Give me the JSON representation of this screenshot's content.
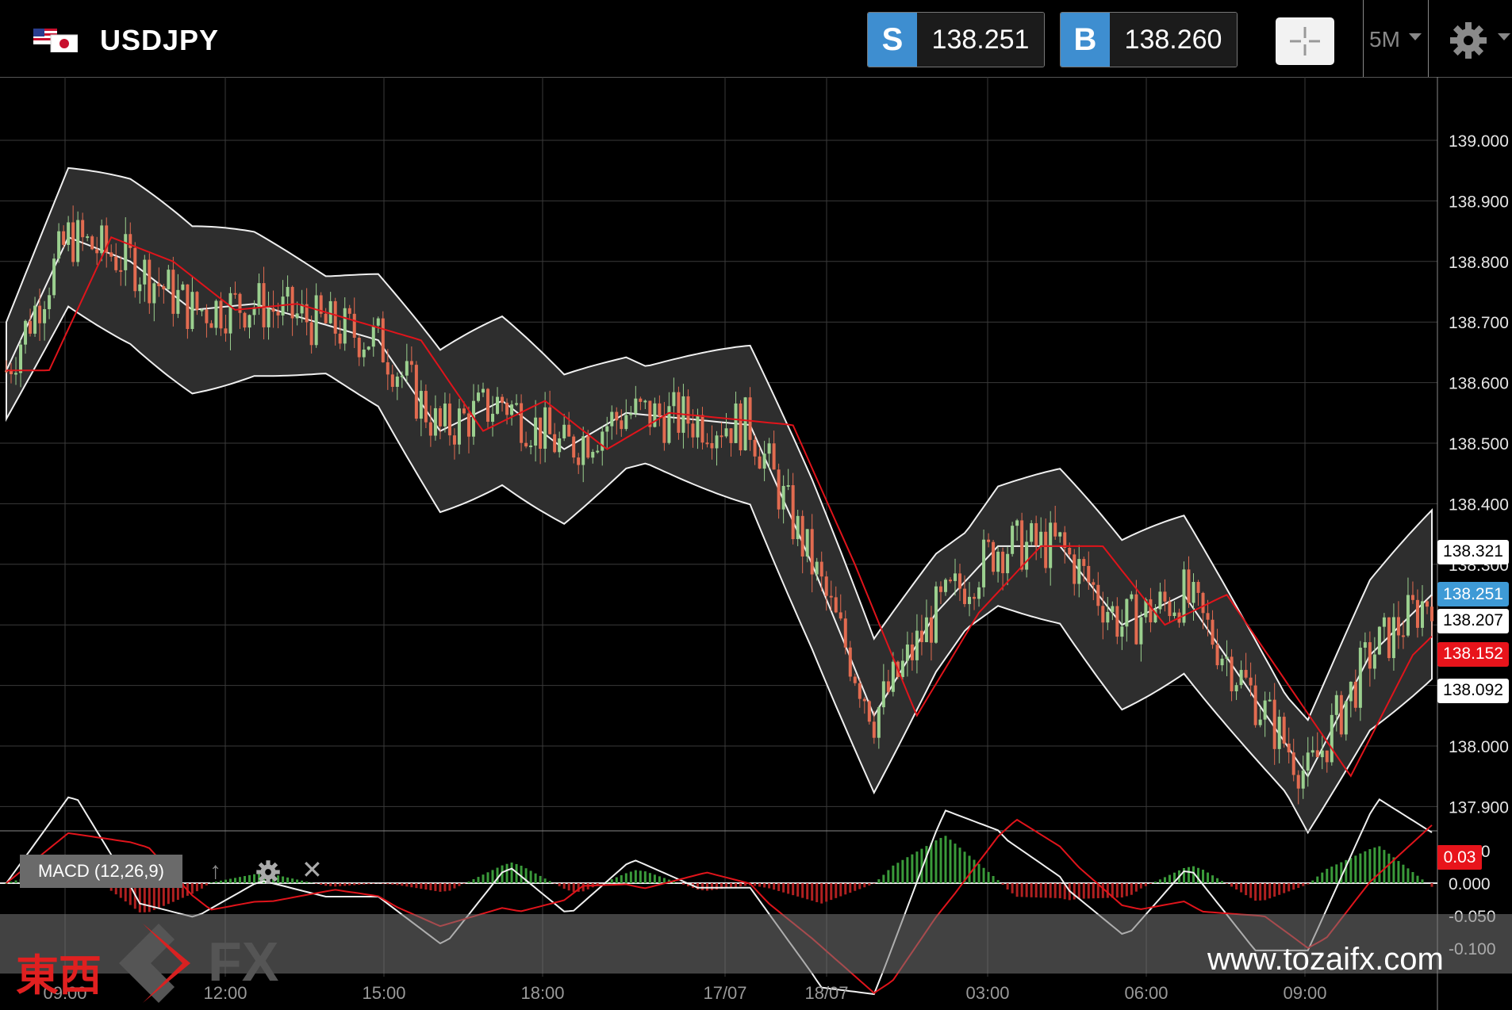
{
  "header": {
    "symbol": "USDJPY",
    "sell": {
      "tag": "S",
      "price": "138.251"
    },
    "buy": {
      "tag": "B",
      "price": "138.260"
    },
    "timeframe": "5M"
  },
  "axis": {
    "y_ticks": [
      "139.000",
      "138.900",
      "138.800",
      "138.700",
      "138.600",
      "138.500",
      "138.400",
      "138.300",
      "138.200",
      "138.100",
      "138.000",
      "137.900"
    ],
    "y_values": [
      139.0,
      138.9,
      138.8,
      138.7,
      138.6,
      138.5,
      138.4,
      138.3,
      138.2,
      138.1,
      138.0,
      137.9
    ],
    "x_ticks": [
      "09:00",
      "12:00",
      "15:00",
      "18:00",
      "17/07",
      "18/07",
      "03:00",
      "06:00",
      "09:00"
    ],
    "macd_ticks": [
      "0.050",
      "0.000",
      "-0.050",
      "-0.100"
    ],
    "macd_values": [
      0.05,
      0.0,
      -0.05,
      -0.1
    ]
  },
  "badges": [
    {
      "label": "138.321",
      "value": 138.321,
      "bg": "#ffffff",
      "fg": "#000000"
    },
    {
      "label": "138.251",
      "value": 138.251,
      "bg": "#3e9ad6",
      "fg": "#ffffff"
    },
    {
      "label": "138.207",
      "value": 138.207,
      "bg": "#ffffff",
      "fg": "#000000"
    },
    {
      "label": "138.152",
      "value": 138.152,
      "bg": "#e8141b",
      "fg": "#ffffff"
    },
    {
      "label": "138.092",
      "value": 138.092,
      "bg": "#ffffff",
      "fg": "#000000"
    }
  ],
  "macd": {
    "label": "MACD (12,26,9)",
    "value": "0.03"
  },
  "watermark": {
    "jp": "東西",
    "fx": "FX",
    "url": "www.tozaifx.com"
  },
  "colors": {
    "accent": "#3e8ed0",
    "up": "#9bd08f",
    "down": "#e26b50",
    "ma": "#e0141b",
    "band": "#2e2e2e"
  },
  "chart_data": {
    "type": "candlestick",
    "symbol": "USDJPY",
    "timeframe": "5M",
    "ylim": [
      137.85,
      139.1
    ],
    "close_path": [
      {
        "x": "09:00",
        "y": 138.62
      },
      {
        "x": "10:00",
        "y": 138.84
      },
      {
        "x": "11:00",
        "y": 138.8
      },
      {
        "x": "12:00",
        "y": 138.72
      },
      {
        "x": "13:00",
        "y": 138.73
      },
      {
        "x": "14:00",
        "y": 138.7
      },
      {
        "x": "15:00",
        "y": 138.67
      },
      {
        "x": "16:00",
        "y": 138.52
      },
      {
        "x": "17:00",
        "y": 138.57
      },
      {
        "x": "18:00",
        "y": 138.49
      },
      {
        "x": "20:00",
        "y": 138.55
      },
      {
        "x": "17/07",
        "y": 138.54
      },
      {
        "x": "18/07",
        "y": 138.53
      },
      {
        "x": "01:00",
        "y": 138.3
      },
      {
        "x": "03:00",
        "y": 138.05
      },
      {
        "x": "04:00",
        "y": 138.22
      },
      {
        "x": "05:00",
        "y": 138.33
      },
      {
        "x": "06:00",
        "y": 138.33
      },
      {
        "x": "07:00",
        "y": 138.2
      },
      {
        "x": "08:00",
        "y": 138.25
      },
      {
        "x": "09:00",
        "y": 138.1
      },
      {
        "x": "09:30",
        "y": 137.95
      },
      {
        "x": "10:00",
        "y": 138.15
      },
      {
        "x": "11:00",
        "y": 138.25
      }
    ],
    "indicators": [
      "Bollinger Bands",
      "Moving Average",
      "MACD (12,26,9)"
    ]
  }
}
